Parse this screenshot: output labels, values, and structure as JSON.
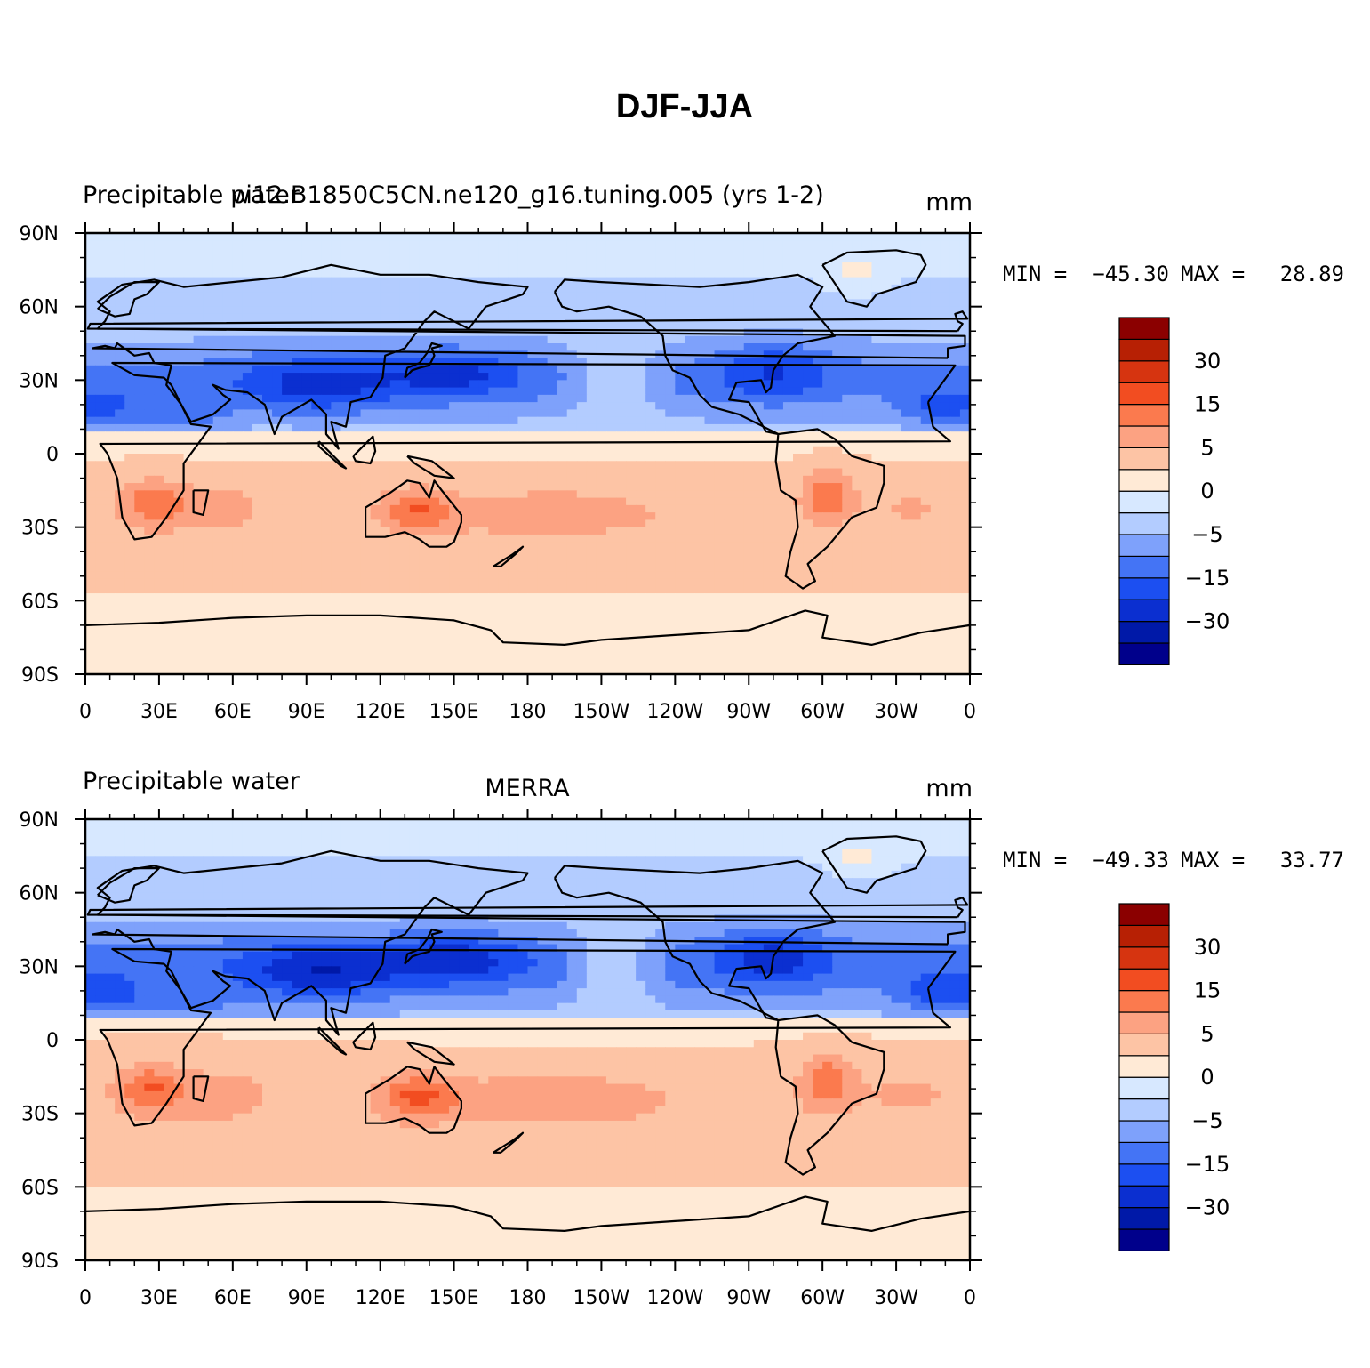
{
  "title": "DJF-JJA",
  "colors": {
    "levels": [
      "#00008b",
      "#0019a8",
      "#0b2fd0",
      "#1c4ff1",
      "#4474f5",
      "#7ea1fb",
      "#b3ccff",
      "#d7e8ff",
      "#ffead6",
      "#fdc4a5",
      "#fca282",
      "#fb7a4e",
      "#f24d21",
      "#d63410",
      "#b72004",
      "#8b0000"
    ],
    "coastline": "#000000"
  },
  "chart_data": [
    {
      "type": "heatmap",
      "title": "Precipitable water",
      "subtitle": "pi12.B1850C5CN.ne120_g16.tuning.005 (yrs 1-2)",
      "units": "mm",
      "stats": {
        "min_label": "MIN =",
        "min": "-45.30",
        "max_label": "MAX =",
        "max": "28.89"
      },
      "x_ticks": [
        "0",
        "30E",
        "60E",
        "90E",
        "120E",
        "150E",
        "180",
        "150W",
        "120W",
        "90W",
        "60W",
        "30W",
        "0"
      ],
      "y_ticks": [
        "90N",
        "60N",
        "30N",
        "0",
        "30S",
        "60S",
        "90S"
      ],
      "colorbar_labels": [
        "30",
        "15",
        "5",
        "0",
        "-5",
        "-15",
        "-30"
      ],
      "xlim": [
        0,
        360
      ],
      "ylim": [
        -90,
        90
      ]
    },
    {
      "type": "heatmap",
      "title": "Precipitable water",
      "subtitle": "MERRA",
      "units": "mm",
      "stats": {
        "min_label": "MIN =",
        "min": "-49.33",
        "max_label": "MAX =",
        "max": "33.77"
      },
      "x_ticks": [
        "0",
        "30E",
        "60E",
        "90E",
        "120E",
        "150E",
        "180",
        "150W",
        "120W",
        "90W",
        "60W",
        "30W",
        "0"
      ],
      "y_ticks": [
        "90N",
        "60N",
        "30N",
        "0",
        "30S",
        "60S",
        "90S"
      ],
      "colorbar_labels": [
        "30",
        "15",
        "5",
        "0",
        "-5",
        "-15",
        "-30"
      ],
      "xlim": [
        0,
        360
      ],
      "ylim": [
        -90,
        90
      ]
    }
  ]
}
